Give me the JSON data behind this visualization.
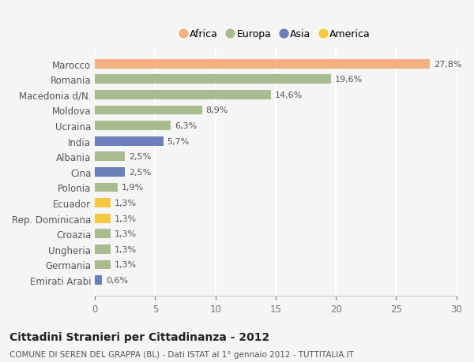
{
  "countries": [
    "Marocco",
    "Romania",
    "Macedonia d/N.",
    "Moldova",
    "Ucraina",
    "India",
    "Albania",
    "Cina",
    "Polonia",
    "Ecuador",
    "Rep. Dominicana",
    "Croazia",
    "Ungheria",
    "Germania",
    "Emirati Arabi"
  ],
  "values": [
    27.8,
    19.6,
    14.6,
    8.9,
    6.3,
    5.7,
    2.5,
    2.5,
    1.9,
    1.3,
    1.3,
    1.3,
    1.3,
    1.3,
    0.6
  ],
  "labels": [
    "27,8%",
    "19,6%",
    "14,6%",
    "8,9%",
    "6,3%",
    "5,7%",
    "2,5%",
    "2,5%",
    "1,9%",
    "1,3%",
    "1,3%",
    "1,3%",
    "1,3%",
    "1,3%",
    "0,6%"
  ],
  "colors": [
    "#f2b083",
    "#a8bc8f",
    "#a8bc8f",
    "#a8bc8f",
    "#a8bc8f",
    "#6b80b8",
    "#a8bc8f",
    "#6b80b8",
    "#a8bc8f",
    "#f5c842",
    "#f5c842",
    "#a8bc8f",
    "#a8bc8f",
    "#a8bc8f",
    "#6b80b8"
  ],
  "legend_labels": [
    "Africa",
    "Europa",
    "Asia",
    "America"
  ],
  "legend_colors": [
    "#f2b083",
    "#a8bc8f",
    "#6b80b8",
    "#f5c842"
  ],
  "title": "Cittadini Stranieri per Cittadinanza - 2012",
  "subtitle": "COMUNE DI SEREN DEL GRAPPA (BL) - Dati ISTAT al 1° gennaio 2012 - TUTTITALIA.IT",
  "xlim": [
    0,
    30
  ],
  "xticks": [
    0,
    5,
    10,
    15,
    20,
    25,
    30
  ],
  "bg_color": "#f5f5f5",
  "grid_color": "#ffffff"
}
